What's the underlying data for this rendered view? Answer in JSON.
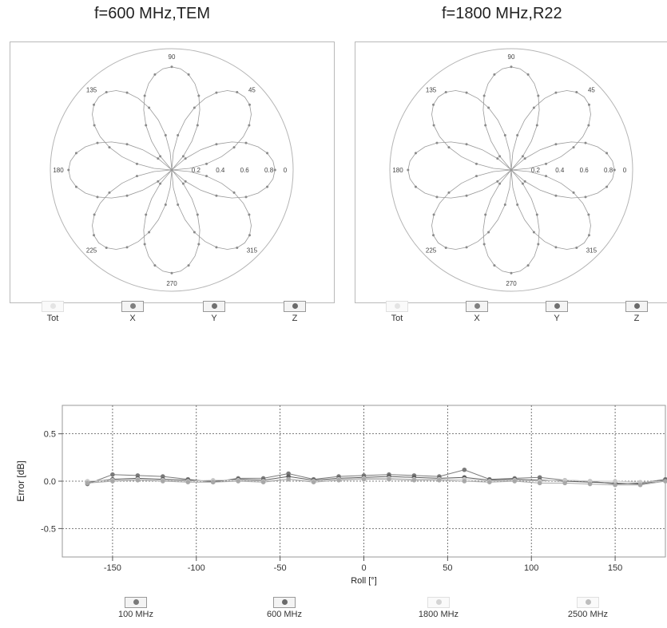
{
  "colors": {
    "marker": "#8a8a8a",
    "line": "#9a9a9a",
    "circle": "#b5b5b5",
    "grid": "#555555",
    "tot": "#dddddd"
  },
  "chart_data": [
    {
      "type": "polar",
      "title": "f=600 MHz,TEM",
      "angle_ticks": [
        "90",
        "45",
        "0",
        "315",
        "270",
        "225",
        "180",
        "135"
      ],
      "radial_ticks": [
        "0.2",
        "0.4",
        "0.6",
        "0.8"
      ],
      "rmax": 1.0,
      "series": [
        {
          "name": "Tot",
          "formula": "none"
        },
        {
          "name": "X",
          "formula": "|sin(2θ)|"
        },
        {
          "name": "Y",
          "formula": "|cos(2θ)|"
        },
        {
          "name": "Z",
          "formula": "none"
        }
      ],
      "legend": [
        "Tot",
        "X",
        "Y",
        "Z"
      ]
    },
    {
      "type": "polar",
      "title": "f=1800 MHz,R22",
      "angle_ticks": [
        "90",
        "45",
        "0",
        "315",
        "270",
        "225",
        "180",
        "135"
      ],
      "radial_ticks": [
        "0.2",
        "0.4",
        "0.6",
        "0.8"
      ],
      "rmax": 1.0,
      "series": [
        {
          "name": "Tot",
          "formula": "none"
        },
        {
          "name": "X",
          "formula": "|sin(2θ)|"
        },
        {
          "name": "Y",
          "formula": "|cos(2θ)|"
        },
        {
          "name": "Z",
          "formula": "none"
        }
      ],
      "legend": [
        "Tot",
        "X",
        "Y",
        "Z"
      ]
    },
    {
      "type": "line",
      "xlabel": "Roll [°]",
      "ylabel": "Error [dB]",
      "xlim": [
        -180,
        180
      ],
      "ylim": [
        -0.8,
        0.8
      ],
      "xticks": [
        -150,
        -100,
        -50,
        0,
        50,
        100,
        150
      ],
      "yticks": [
        0.5,
        0.0,
        -0.5
      ],
      "ytick_labels": [
        "0.5",
        "0.0",
        "-0.5"
      ],
      "xtick_labels": [
        "-150",
        "-100",
        "-50",
        "0",
        "50",
        "100",
        "150"
      ],
      "x": [
        -165,
        -150,
        -135,
        -120,
        -105,
        -90,
        -75,
        -60,
        -45,
        -30,
        -15,
        0,
        15,
        30,
        45,
        60,
        75,
        90,
        105,
        120,
        135,
        150,
        165,
        180
      ],
      "series": [
        {
          "name": "100 MHz",
          "values": [
            -0.03,
            0.07,
            0.06,
            0.05,
            0.02,
            -0.01,
            0.03,
            0.03,
            0.08,
            0.02,
            0.05,
            0.06,
            0.07,
            0.06,
            0.05,
            0.12,
            0.02,
            0.03,
            0.04,
            0.01,
            0.0,
            -0.03,
            -0.02,
            0.02
          ]
        },
        {
          "name": "600 MHz",
          "values": [
            -0.01,
            0.02,
            0.03,
            0.02,
            0.01,
            0.0,
            0.02,
            0.01,
            0.05,
            0.01,
            0.03,
            0.04,
            0.05,
            0.04,
            0.03,
            0.04,
            0.01,
            0.02,
            0.01,
            0.0,
            -0.01,
            -0.02,
            -0.03,
            0.01
          ]
        },
        {
          "name": "1800 MHz",
          "values": [
            0.0,
            0.01,
            0.02,
            0.01,
            0.0,
            0.01,
            0.01,
            0.0,
            0.02,
            0.0,
            0.02,
            0.03,
            0.03,
            0.02,
            0.02,
            0.02,
            0.0,
            0.01,
            0.0,
            0.01,
            0.0,
            0.0,
            -0.01,
            0.0
          ]
        },
        {
          "name": "2500 MHz",
          "values": [
            -0.02,
            0.0,
            0.01,
            0.0,
            -0.01,
            -0.01,
            0.0,
            -0.01,
            0.02,
            -0.01,
            0.01,
            0.02,
            0.02,
            0.01,
            0.01,
            0.0,
            -0.01,
            0.0,
            -0.02,
            -0.02,
            -0.03,
            -0.04,
            -0.04,
            0.0
          ]
        }
      ],
      "legend": [
        "100 MHz",
        "600 MHz",
        "1800 MHz",
        "2500 MHz"
      ]
    }
  ]
}
